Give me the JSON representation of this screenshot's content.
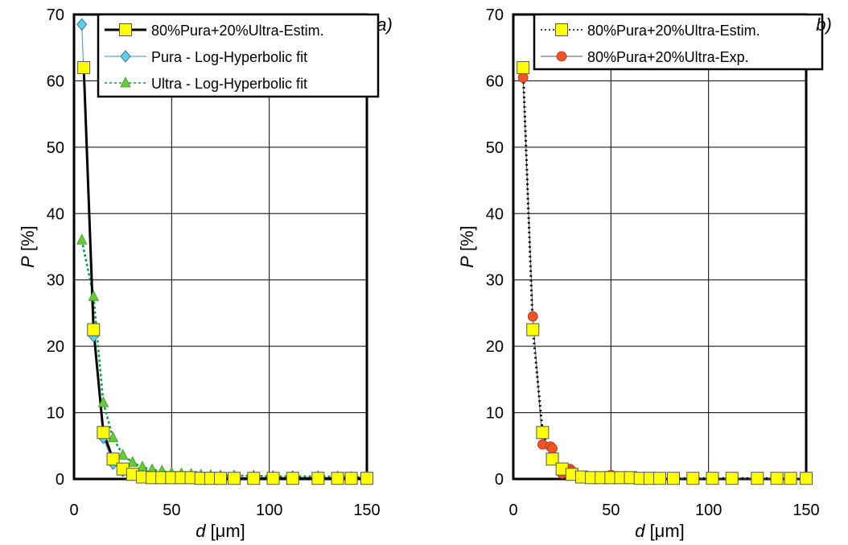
{
  "chart_data": [
    {
      "type": "line",
      "panel_label": "a)",
      "xlabel_var": "d",
      "xlabel_unit": " [μm]",
      "ylabel_var": "P",
      "ylabel_unit": " [%]",
      "xlim": [
        0,
        150
      ],
      "ylim": [
        0,
        70
      ],
      "xticks": [
        "0",
        "50",
        "100",
        "150"
      ],
      "yticks": [
        "0",
        "10",
        "20",
        "30",
        "40",
        "50",
        "60",
        "70"
      ],
      "grid": true,
      "legend_position": "top-right",
      "series": [
        {
          "name": "80%Pura+20%Ultra-Estim.",
          "color": "#000000",
          "marker": "square",
          "marker_color": "#ffff00",
          "x": [
            5,
            10,
            15,
            20,
            25,
            30,
            35,
            40,
            45,
            50,
            55,
            60,
            65,
            70,
            75,
            82,
            92,
            102,
            112,
            125,
            135,
            142,
            150
          ],
          "y": [
            62,
            22.5,
            7,
            3,
            1.5,
            0.7,
            0.3,
            0.2,
            0.2,
            0.2,
            0.2,
            0.2,
            0.1,
            0.1,
            0.1,
            0.1,
            0.1,
            0.1,
            0.1,
            0.1,
            0.1,
            0.1,
            0.1
          ]
        },
        {
          "name": "Pura - Log-Hyperbolic fit",
          "color": "#2f9fb8",
          "marker": "diamond",
          "marker_color": "#66ccee",
          "x": [
            4,
            10,
            15,
            20,
            25,
            30
          ],
          "y": [
            68.5,
            21.5,
            6.2,
            2.3,
            1.2,
            0.6
          ]
        },
        {
          "name": "Ultra - Log-Hyperbolic fit",
          "color": "#00a040",
          "marker": "triangle",
          "marker_color": "#66cc33",
          "x": [
            4,
            10,
            15,
            20,
            25,
            30,
            35,
            40,
            45,
            50,
            55,
            60,
            65,
            70,
            75,
            82,
            92,
            102,
            112,
            125,
            135,
            142,
            150
          ],
          "y": [
            36,
            27.5,
            11.5,
            6.2,
            3.6,
            2.5,
            1.8,
            1.4,
            1.2,
            0.9,
            0.8,
            0.7,
            0.6,
            0.55,
            0.5,
            0.5,
            0.5,
            0.4,
            0.4,
            0.4,
            0.35,
            0.3,
            0.3
          ]
        }
      ]
    },
    {
      "type": "line",
      "panel_label": "b)",
      "xlabel_var": "d",
      "xlabel_unit": " [μm]",
      "ylabel_var": "P",
      "ylabel_unit": " [%]",
      "xlim": [
        0,
        150
      ],
      "ylim": [
        0,
        70
      ],
      "xticks": [
        "0",
        "50",
        "100",
        "150"
      ],
      "yticks": [
        "0",
        "10",
        "20",
        "30",
        "40",
        "50",
        "60",
        "70"
      ],
      "grid": true,
      "legend_position": "top-right",
      "series": [
        {
          "name": "80%Pura+20%Ultra-Estim.",
          "color": "#000000",
          "marker": "square",
          "marker_color": "#ffff00",
          "x": [
            5,
            10,
            15,
            20,
            25,
            30,
            35,
            40,
            45,
            50,
            55,
            60,
            65,
            70,
            75,
            82,
            92,
            102,
            112,
            125,
            135,
            142,
            150
          ],
          "y": [
            62,
            22.5,
            7,
            3,
            1.5,
            0.7,
            0.3,
            0.2,
            0.2,
            0.2,
            0.2,
            0.2,
            0.1,
            0.1,
            0.1,
            0.1,
            0.1,
            0.1,
            0.1,
            0.1,
            0.1,
            0.1,
            0.1
          ]
        },
        {
          "name": "80%Pura+20%Ultra-Exp.",
          "color": "#555555",
          "marker": "circle",
          "marker_color": "#ee5522",
          "x": [
            5,
            10,
            15,
            19,
            20,
            25,
            29,
            30,
            35,
            40,
            45,
            50,
            55,
            60,
            65,
            70,
            75,
            82,
            92,
            102,
            112,
            125,
            135,
            142,
            150
          ],
          "y": [
            60.5,
            24.5,
            5.2,
            4.9,
            4.6,
            0.8,
            1.5,
            1.2,
            0.4,
            0.3,
            0.3,
            0.6,
            0.2,
            0.2,
            0.1,
            0.1,
            0.0,
            0.0,
            0.0,
            0.0,
            0.0,
            0.0,
            0.0,
            0.0,
            0.0
          ]
        }
      ]
    }
  ]
}
